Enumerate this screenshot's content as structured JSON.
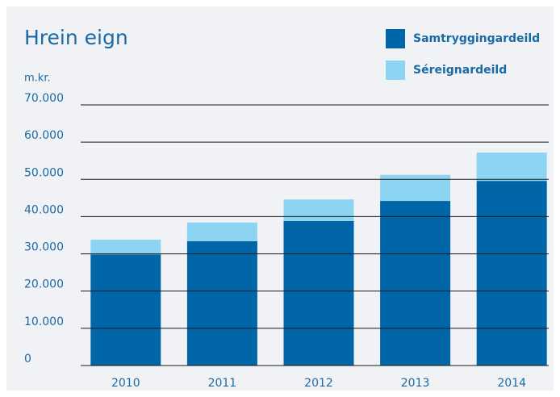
{
  "chart_data": {
    "type": "stacked_bar",
    "title": "Hrein eign",
    "y_axis_label": "m.kr.",
    "categories": [
      "2010",
      "2011",
      "2012",
      "2013",
      "2014"
    ],
    "series": [
      {
        "name": "Samtryggingardeild",
        "color": "#0066a8",
        "values": [
          29800,
          33400,
          38800,
          44200,
          49600
        ]
      },
      {
        "name": "Séreignardeild",
        "color": "#8dd4f2",
        "values": [
          4000,
          5000,
          5800,
          7000,
          7600
        ]
      }
    ],
    "ylim": [
      0,
      70000
    ],
    "yticks": [
      0,
      {
        "value": 10000,
        "label": "10.000"
      },
      {
        "value": 20000,
        "label": "20.000"
      },
      {
        "value": 30000,
        "label": "30.000"
      },
      {
        "value": 40000,
        "label": "40.000"
      },
      {
        "value": 50000,
        "label": "50.000"
      },
      {
        "value": 60000,
        "label": "60.000"
      },
      {
        "value": 70000,
        "label": "70.000"
      }
    ],
    "grid": true
  }
}
